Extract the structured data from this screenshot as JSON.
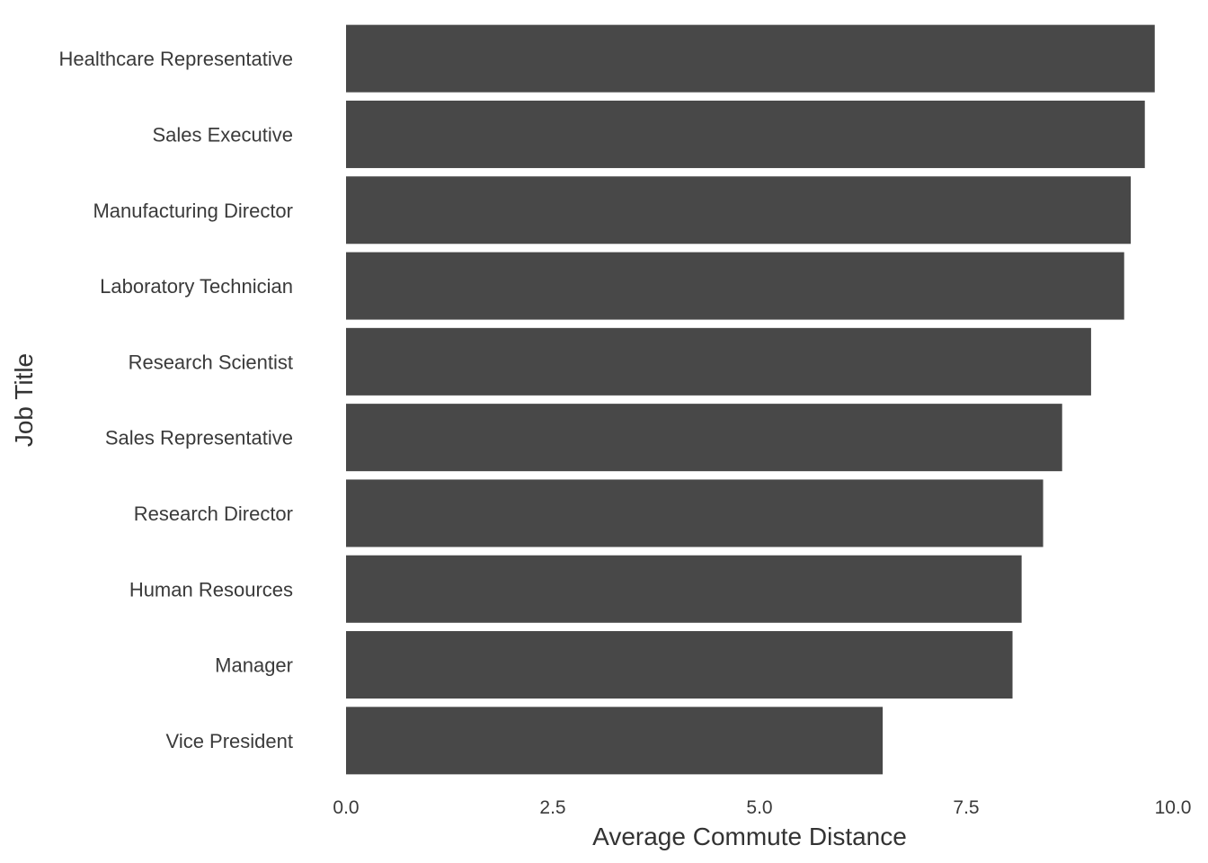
{
  "chart_data": {
    "type": "bar",
    "orientation": "horizontal",
    "title": "",
    "xlabel": "Average Commute Distance",
    "ylabel": "Job Title",
    "categories": [
      "Healthcare Representative",
      "Sales Executive",
      "Manufacturing Director",
      "Laboratory Technician",
      "Research Scientist",
      "Sales Representative",
      "Research Director",
      "Human Resources",
      "Manager",
      "Vice President"
    ],
    "values": [
      9.78,
      9.66,
      9.49,
      9.41,
      9.01,
      8.66,
      8.43,
      8.17,
      8.06,
      6.49
    ],
    "xlim": [
      0,
      10
    ],
    "xticks": [
      0,
      2.5,
      5,
      7.5,
      10
    ],
    "xtick_labels": [
      "0.0",
      "2.5",
      "5.0",
      "7.5",
      "10.0"
    ],
    "grid": false,
    "legend": "none",
    "bar_color": "#484848"
  }
}
